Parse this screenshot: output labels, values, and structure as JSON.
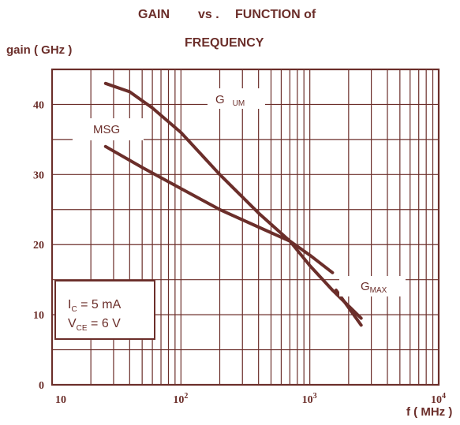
{
  "chart_data": {
    "type": "line",
    "title_line1_left": "GAIN",
    "title_line1_mid": "vs .",
    "title_line1_right": "FUNCTION of",
    "title_line2": "FREQUENCY",
    "ylabel": "gain (  GHz )",
    "xlabel": "f (  MHz )",
    "x_scale": "log",
    "xlim": [
      10,
      10000
    ],
    "ylim": [
      0,
      45
    ],
    "grid": true,
    "y_ticks": [
      "0",
      "10",
      "20",
      "30",
      "40"
    ],
    "x_ticks": [
      {
        "base": "10",
        "exp": ""
      },
      {
        "base": "10",
        "exp": "2"
      },
      {
        "base": "10",
        "exp": "3"
      },
      {
        "base": "10",
        "exp": "4"
      }
    ],
    "series": [
      {
        "name": "G UM",
        "label_main": "G",
        "label_sub": "UM",
        "x": [
          26,
          40,
          60,
          100,
          200,
          400,
          700,
          1000,
          1500,
          2500
        ],
        "y": [
          43,
          41.8,
          39.5,
          36,
          30,
          24.5,
          20.5,
          17,
          13.5,
          9.5
        ]
      },
      {
        "name": "MSG",
        "label_main": "MSG",
        "label_sub": "",
        "x": [
          26,
          50,
          100,
          200,
          400,
          700,
          1000,
          1500
        ],
        "y": [
          34,
          31,
          28,
          25,
          22.5,
          20.5,
          18.5,
          16
        ]
      },
      {
        "name": "G MAX",
        "label_main": "G",
        "label_sub": "MAX",
        "x": [
          1600,
          2500
        ],
        "y": [
          13.5,
          8.5
        ]
      }
    ],
    "conditions": {
      "ic_main": "I",
      "ic_sub": "C",
      "ic_value": " =  5     mA",
      "vce_main": "V",
      "vce_sub": "CE",
      "vce_value": " =  6   V"
    },
    "colors": {
      "line": "#6b2e2a",
      "grid": "#6b2e2a",
      "text": "#6b2e2a"
    }
  }
}
